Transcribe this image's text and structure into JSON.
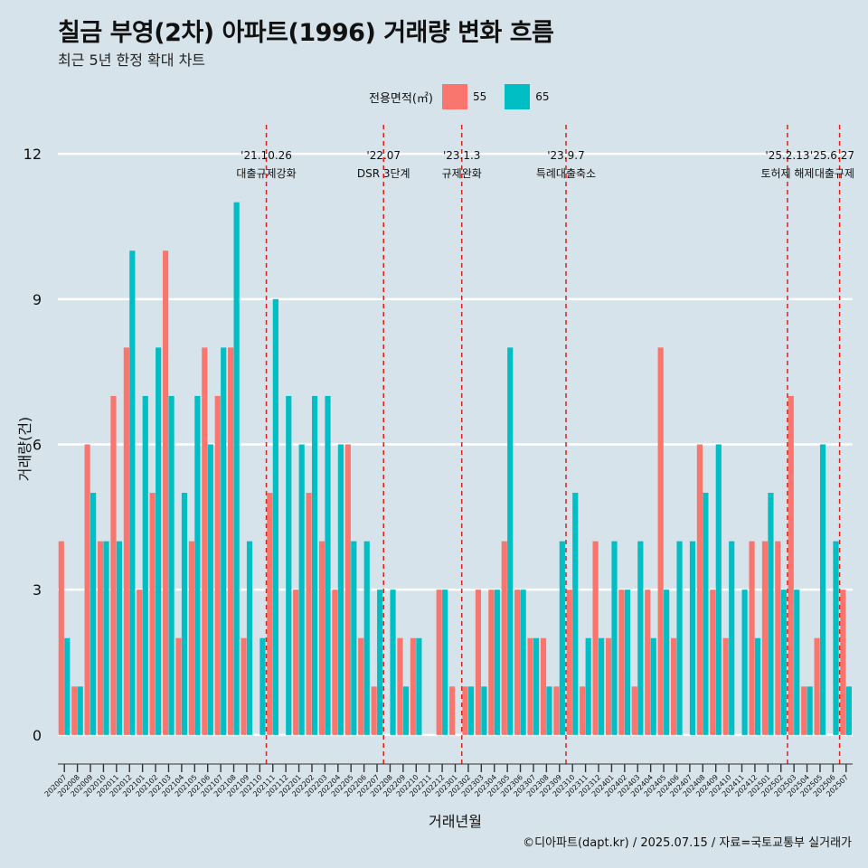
{
  "title": "칠금 부영(2차) 아파트(1996) 거래량 변화 흐름",
  "subtitle": "최근 5년 한정 확대 차트",
  "caption": "©디아파트(dapt.kr) / 2025.07.15 / 자료=국토교통부 실거래가",
  "legend": {
    "title": "전용면적(㎡)",
    "items": [
      {
        "label": "55",
        "color": "#f8766d"
      },
      {
        "label": "65",
        "color": "#00bfc4"
      }
    ]
  },
  "chart_data": {
    "type": "bar",
    "title": "칠금 부영(2차) 아파트(1996) 거래량 변화 흐름",
    "xlabel": "거래년월",
    "ylabel": "거래량(건)",
    "ylim": [
      -0.6,
      12.6
    ],
    "yticks": [
      0,
      3,
      6,
      9,
      12
    ],
    "categories": [
      "202007",
      "202008",
      "202009",
      "202010",
      "202011",
      "202012",
      "202101",
      "202102",
      "202103",
      "202104",
      "202105",
      "202106",
      "202107",
      "202108",
      "202109",
      "202110",
      "202111",
      "202112",
      "202201",
      "202202",
      "202203",
      "202204",
      "202205",
      "202206",
      "202207",
      "202208",
      "202209",
      "202210",
      "202211",
      "202212",
      "202301",
      "202302",
      "202303",
      "202304",
      "202305",
      "202306",
      "202307",
      "202308",
      "202309",
      "202310",
      "202311",
      "202312",
      "202401",
      "202402",
      "202403",
      "202404",
      "202405",
      "202406",
      "202407",
      "202408",
      "202409",
      "202410",
      "202411",
      "202412",
      "202501",
      "202502",
      "202503",
      "202504",
      "202505",
      "202506",
      "202507"
    ],
    "series": [
      {
        "name": "55",
        "color": "#f8766d",
        "values": [
          4,
          1,
          6,
          4,
          7,
          8,
          3,
          5,
          10,
          2,
          4,
          8,
          7,
          8,
          2,
          0,
          5,
          0,
          3,
          5,
          4,
          3,
          6,
          2,
          1,
          0,
          2,
          2,
          0,
          3,
          1,
          1,
          3,
          3,
          4,
          3,
          2,
          2,
          1,
          3,
          1,
          4,
          2,
          3,
          1,
          3,
          8,
          2,
          0,
          6,
          3,
          2,
          0,
          4,
          4,
          4,
          7,
          1,
          2,
          0,
          3
        ]
      },
      {
        "name": "65",
        "color": "#00bfc4",
        "values": [
          2,
          1,
          5,
          4,
          4,
          10,
          7,
          8,
          7,
          5,
          7,
          6,
          8,
          11,
          4,
          2,
          9,
          7,
          6,
          7,
          7,
          6,
          4,
          4,
          3,
          3,
          1,
          2,
          0,
          3,
          0,
          1,
          1,
          3,
          8,
          3,
          2,
          1,
          4,
          5,
          2,
          2,
          4,
          3,
          4,
          2,
          3,
          4,
          4,
          5,
          6,
          4,
          3,
          2,
          5,
          3,
          3,
          1,
          6,
          4,
          1
        ]
      }
    ],
    "events": [
      {
        "date": "'21.10.26",
        "label": "대출규제강화",
        "after_index": 15
      },
      {
        "date": "'22.07",
        "label": "DSR 3단계",
        "after_index": 24
      },
      {
        "date": "'23.1.3",
        "label": "규제완화",
        "after_index": 30
      },
      {
        "date": "'23.9.7",
        "label": "특례대출축소",
        "after_index": 38
      },
      {
        "date": "'25.2.13",
        "label": "토허제 해제",
        "after_index": 55
      },
      {
        "date": "'25.6.27",
        "label": "대출규제",
        "after_index": 59
      }
    ]
  }
}
